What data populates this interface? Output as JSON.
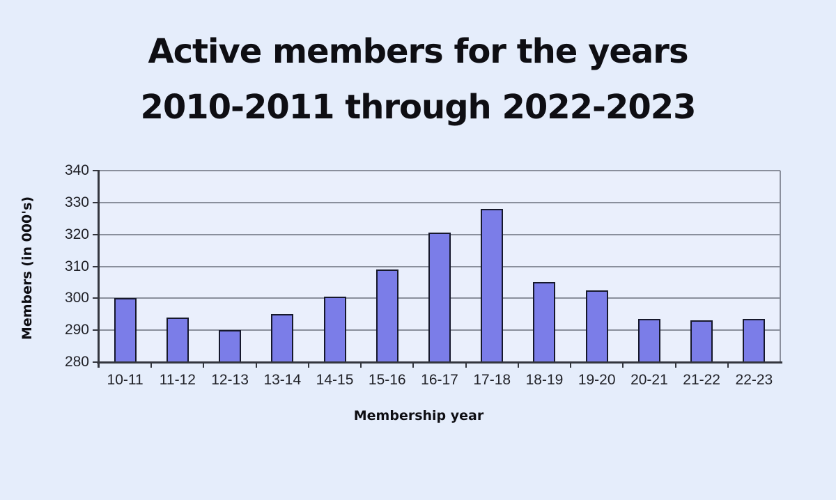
{
  "title": {
    "line1": "Active members for the years",
    "line2": "2010-2011 through 2022-2023"
  },
  "chart_data": {
    "type": "bar",
    "title": "Active members for the years 2010-2011 through 2022-2023",
    "categories": [
      "10-11",
      "11-12",
      "12-13",
      "13-14",
      "14-15",
      "15-16",
      "16-17",
      "17-18",
      "18-19",
      "19-20",
      "20-21",
      "21-22",
      "22-23"
    ],
    "values": [
      300,
      294,
      290,
      295,
      300.5,
      309,
      320.5,
      328,
      305,
      302.5,
      293.5,
      293,
      293.5
    ],
    "xlabel": "Membership year",
    "ylabel": "Members (in 000's)",
    "ylim": [
      280,
      340
    ],
    "yticks": [
      280,
      290,
      300,
      310,
      320,
      330,
      340
    ],
    "grid": true,
    "legend": false,
    "colors": {
      "page_bg": "#e5edfb",
      "plot_bg": "#eaeffc",
      "bar_fill": "#7b7de8",
      "bar_border": "#16182b",
      "grid_line": "#8a8f9c",
      "axis_line": "#33363e",
      "title_text": "#0e0e13",
      "tick_text": "#202127"
    }
  }
}
